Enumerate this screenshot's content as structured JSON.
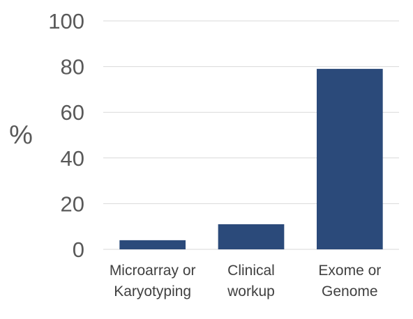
{
  "chart_data": {
    "type": "bar",
    "categories": [
      [
        "Microarray or",
        "Karyotyping"
      ],
      [
        "Clinical",
        "workup"
      ],
      [
        "Exome or",
        "Genome"
      ]
    ],
    "values": [
      4,
      11,
      79
    ],
    "title": "",
    "xlabel": "",
    "ylabel": "%",
    "ylim": [
      0,
      100
    ],
    "yticks": [
      "0",
      "20",
      "40",
      "60",
      "80",
      "100"
    ],
    "grid": true,
    "legend": "none",
    "bar_color": "#2b4a7a"
  }
}
